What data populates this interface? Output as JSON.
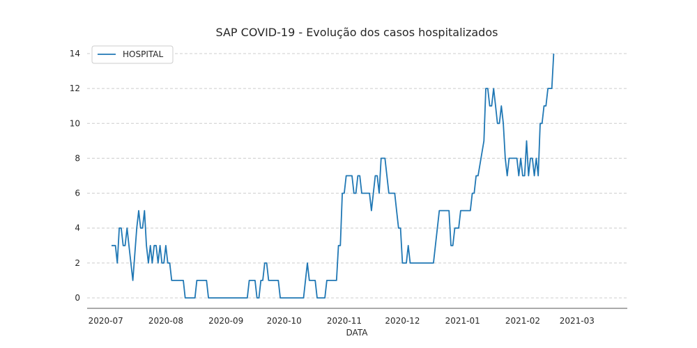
{
  "chart_data": {
    "type": "line",
    "title": "SAP COVID-19 - Evolução dos casos hospitalizados",
    "xlabel": "DATA",
    "ylabel": "",
    "x_start": "2020-07-04",
    "x_end": "2021-03-14",
    "x_ticks": [
      "2020-07",
      "2020-08",
      "2020-09",
      "2020-10",
      "2020-11",
      "2020-12",
      "2021-01",
      "2021-02",
      "2021-03"
    ],
    "y_ticks": [
      0,
      2,
      4,
      6,
      8,
      10,
      12,
      14
    ],
    "ylim": [
      0,
      14
    ],
    "grid": "horizontal-dashed",
    "legend": {
      "position": "top-left"
    },
    "series": [
      {
        "name": "HOSPITAL",
        "color": "#1f77b4",
        "points": [
          [
            "2020-07-04",
            3
          ],
          [
            "2020-07-06",
            3
          ],
          [
            "2020-07-07",
            2
          ],
          [
            "2020-07-08",
            4
          ],
          [
            "2020-07-09",
            4
          ],
          [
            "2020-07-10",
            3
          ],
          [
            "2020-07-11",
            3
          ],
          [
            "2020-07-12",
            4
          ],
          [
            "2020-07-13",
            3
          ],
          [
            "2020-07-15",
            1
          ],
          [
            "2020-07-17",
            4
          ],
          [
            "2020-07-18",
            5
          ],
          [
            "2020-07-19",
            4
          ],
          [
            "2020-07-20",
            4
          ],
          [
            "2020-07-21",
            5
          ],
          [
            "2020-07-22",
            3
          ],
          [
            "2020-07-23",
            2
          ],
          [
            "2020-07-24",
            3
          ],
          [
            "2020-07-25",
            2
          ],
          [
            "2020-07-26",
            3
          ],
          [
            "2020-07-27",
            3
          ],
          [
            "2020-07-28",
            2
          ],
          [
            "2020-07-29",
            3
          ],
          [
            "2020-07-30",
            2
          ],
          [
            "2020-07-31",
            2
          ],
          [
            "2020-08-01",
            3
          ],
          [
            "2020-08-02",
            2
          ],
          [
            "2020-08-03",
            2
          ],
          [
            "2020-08-04",
            1
          ],
          [
            "2020-08-09",
            1
          ],
          [
            "2020-08-10",
            1
          ],
          [
            "2020-08-11",
            0
          ],
          [
            "2020-08-16",
            0
          ],
          [
            "2020-08-17",
            1
          ],
          [
            "2020-08-22",
            1
          ],
          [
            "2020-08-23",
            0
          ],
          [
            "2020-09-10",
            0
          ],
          [
            "2020-09-12",
            0
          ],
          [
            "2020-09-13",
            1
          ],
          [
            "2020-09-16",
            1
          ],
          [
            "2020-09-17",
            0
          ],
          [
            "2020-09-18",
            0
          ],
          [
            "2020-09-19",
            1
          ],
          [
            "2020-09-20",
            1
          ],
          [
            "2020-09-21",
            2
          ],
          [
            "2020-09-22",
            2
          ],
          [
            "2020-09-23",
            1
          ],
          [
            "2020-09-28",
            1
          ],
          [
            "2020-09-29",
            0
          ],
          [
            "2020-10-10",
            0
          ],
          [
            "2020-10-11",
            0
          ],
          [
            "2020-10-13",
            2
          ],
          [
            "2020-10-14",
            1
          ],
          [
            "2020-10-17",
            1
          ],
          [
            "2020-10-18",
            0
          ],
          [
            "2020-10-22",
            0
          ],
          [
            "2020-10-23",
            1
          ],
          [
            "2020-10-28",
            1
          ],
          [
            "2020-10-29",
            3
          ],
          [
            "2020-10-30",
            3
          ],
          [
            "2020-10-31",
            6
          ],
          [
            "2020-11-01",
            6
          ],
          [
            "2020-11-02",
            7
          ],
          [
            "2020-11-05",
            7
          ],
          [
            "2020-11-06",
            6
          ],
          [
            "2020-11-07",
            6
          ],
          [
            "2020-11-08",
            7
          ],
          [
            "2020-11-09",
            7
          ],
          [
            "2020-11-10",
            6
          ],
          [
            "2020-11-14",
            6
          ],
          [
            "2020-11-15",
            5
          ],
          [
            "2020-11-17",
            7
          ],
          [
            "2020-11-18",
            7
          ],
          [
            "2020-11-19",
            6
          ],
          [
            "2020-11-20",
            8
          ],
          [
            "2020-11-21",
            8
          ],
          [
            "2020-11-22",
            8
          ],
          [
            "2020-11-23",
            7
          ],
          [
            "2020-11-24",
            6
          ],
          [
            "2020-11-27",
            6
          ],
          [
            "2020-11-28",
            5
          ],
          [
            "2020-11-29",
            4
          ],
          [
            "2020-11-30",
            4
          ],
          [
            "2020-12-01",
            2
          ],
          [
            "2020-12-03",
            2
          ],
          [
            "2020-12-04",
            3
          ],
          [
            "2020-12-05",
            2
          ],
          [
            "2020-12-16",
            2
          ],
          [
            "2020-12-17",
            2
          ],
          [
            "2020-12-20",
            5
          ],
          [
            "2020-12-25",
            5
          ],
          [
            "2020-12-26",
            3
          ],
          [
            "2020-12-27",
            3
          ],
          [
            "2020-12-28",
            4
          ],
          [
            "2020-12-30",
            4
          ],
          [
            "2020-12-31",
            5
          ],
          [
            "2021-01-05",
            5
          ],
          [
            "2021-01-06",
            6
          ],
          [
            "2021-01-07",
            6
          ],
          [
            "2021-01-08",
            7
          ],
          [
            "2021-01-09",
            7
          ],
          [
            "2021-01-12",
            9
          ],
          [
            "2021-01-13",
            12
          ],
          [
            "2021-01-14",
            12
          ],
          [
            "2021-01-15",
            11
          ],
          [
            "2021-01-16",
            11
          ],
          [
            "2021-01-17",
            12
          ],
          [
            "2021-01-18",
            11
          ],
          [
            "2021-01-19",
            10
          ],
          [
            "2021-01-20",
            10
          ],
          [
            "2021-01-21",
            11
          ],
          [
            "2021-01-22",
            10
          ],
          [
            "2021-01-23",
            8
          ],
          [
            "2021-01-24",
            7
          ],
          [
            "2021-01-25",
            8
          ],
          [
            "2021-01-29",
            8
          ],
          [
            "2021-01-30",
            7
          ],
          [
            "2021-01-31",
            8
          ],
          [
            "2021-02-01",
            7
          ],
          [
            "2021-02-02",
            7
          ],
          [
            "2021-02-03",
            9
          ],
          [
            "2021-02-04",
            7
          ],
          [
            "2021-02-05",
            8
          ],
          [
            "2021-02-06",
            8
          ],
          [
            "2021-02-07",
            7
          ],
          [
            "2021-02-08",
            8
          ],
          [
            "2021-02-09",
            7
          ],
          [
            "2021-02-10",
            10
          ],
          [
            "2021-02-11",
            10
          ],
          [
            "2021-02-12",
            11
          ],
          [
            "2021-02-13",
            11
          ],
          [
            "2021-02-14",
            12
          ],
          [
            "2021-02-16",
            12
          ],
          [
            "2021-02-17",
            14
          ]
        ]
      }
    ]
  }
}
